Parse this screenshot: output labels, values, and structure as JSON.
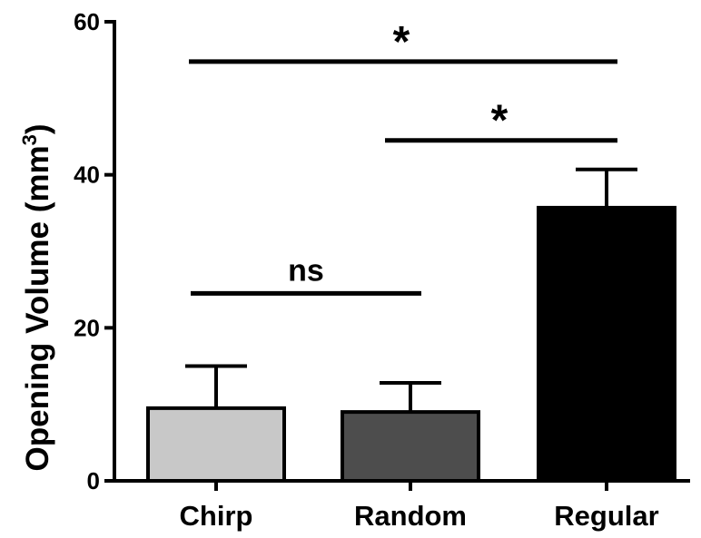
{
  "chart_data": {
    "type": "bar",
    "categories": [
      "Chirp",
      "Random",
      "Regular"
    ],
    "values": [
      9.5,
      9.0,
      35.7
    ],
    "errors": [
      5.5,
      3.8,
      5.0
    ],
    "colors": [
      "#c8c8c8",
      "#4d4d4d",
      "#000000"
    ],
    "ylabel_main": "Opening  Volume (mm",
    "ylabel_sup": "3",
    "ylabel_tail": ")",
    "ylim": [
      0,
      60
    ],
    "yticks": [
      "0",
      "20",
      "40",
      "60"
    ],
    "significance": [
      {
        "from": 0,
        "to": 1,
        "label": "ns",
        "y": 24.5
      },
      {
        "from": 1,
        "to": 2,
        "label": "*",
        "y": 44.5
      },
      {
        "from": 0,
        "to": 2,
        "label": "*",
        "y": 54.8
      }
    ]
  }
}
